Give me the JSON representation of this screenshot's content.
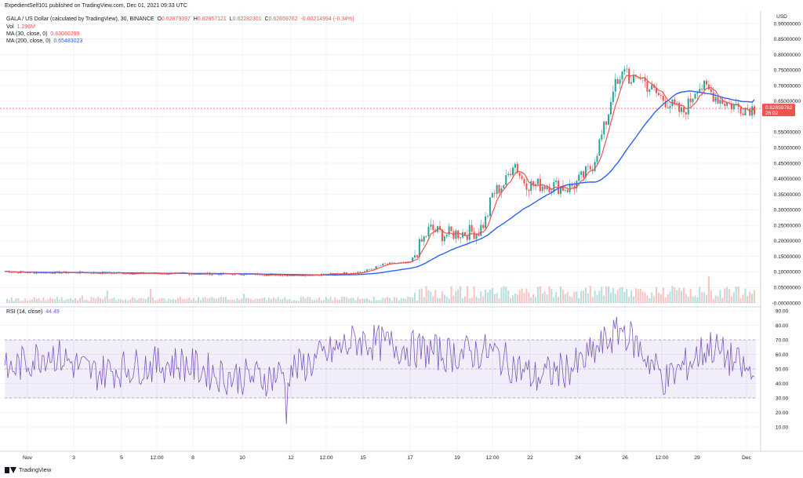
{
  "header": {
    "publisher": "ExpedientSelf101 published on TradingView.com, Dec 01, 2021 09:33 UTC"
  },
  "symbol_line": {
    "title": "GALA / US Dollar (calculated by TradingView), 30, BINANCE",
    "o_label": "O",
    "o_value": "0.62879397",
    "h_label": "H",
    "h_value": "0.62957121",
    "l_label": "L",
    "l_value": "0.62282301",
    "c_label": "C",
    "c_value": "0.62659762",
    "change": "-0.00214994 (-0.34%)"
  },
  "indicators": {
    "vol_label": "Vol",
    "vol_value": "1.296M",
    "ma30_label": "MA (30, close, 0)",
    "ma30_value": "0.63060299",
    "ma200_label": "MA (200, close, 0)",
    "ma200_value": "0.65483023",
    "rsi_label": "RSI (14, close)",
    "rsi_value": "44.49"
  },
  "price_axis": {
    "currency": "USD",
    "ticks": [
      "0.90000000",
      "0.85000000",
      "0.80000000",
      "0.75000000",
      "0.70000000",
      "0.65000000",
      "0.60000000",
      "0.55000000",
      "0.50000000",
      "0.45000000",
      "0.40000000",
      "0.35000000",
      "0.30000000",
      "0.25000000",
      "0.20000000",
      "0.15000000",
      "0.10000000",
      "0.05000000",
      "-0.00000000"
    ],
    "last_price": "0.62659762",
    "countdown": "26:02"
  },
  "rsi_axis": {
    "ticks": [
      "90.00",
      "80.00",
      "70.00",
      "60.00",
      "50.00",
      "40.00",
      "30.00",
      "20.00",
      "10.00"
    ]
  },
  "time_axis": {
    "labels": [
      "Nov",
      "3",
      "5",
      "12:00",
      "8",
      "10",
      "12",
      "12:00",
      "15",
      "17",
      "19",
      "12:00",
      "22",
      "24",
      "26",
      "12:00",
      "29",
      "Dec"
    ]
  },
  "footer": {
    "brand": "TradingView"
  },
  "colors": {
    "up": "#26a69a",
    "down": "#ef5350",
    "ma30": "#ef5350",
    "ma200": "#2962ff",
    "rsi": "#7e57c2",
    "rsi_band": "#7e57c2",
    "last_price_bg": "#ef5350",
    "grid": "#f0f3fa"
  },
  "chart_data": [
    {
      "type": "candlestick",
      "title": "GALA / US Dollar (calculated by TradingView), 30, BINANCE",
      "ylim": [
        0,
        0.9
      ],
      "x": [
        "Nov",
        "3",
        "5",
        "12:00",
        "8",
        "10",
        "12",
        "12:00",
        "15",
        "17",
        "19",
        "12:00",
        "22",
        "24",
        "26",
        "12:00",
        "29",
        "Dec"
      ],
      "close_approx": [
        0.1,
        0.098,
        0.095,
        0.093,
        0.094,
        0.093,
        0.09,
        0.09,
        0.1,
        0.17,
        0.22,
        0.33,
        0.39,
        0.43,
        0.75,
        0.7,
        0.7,
        0.626
      ],
      "series": [
        {
          "name": "MA (30, close, 0)",
          "last": 0.63060299
        },
        {
          "name": "MA (200, close, 0)",
          "last": 0.65483023
        }
      ],
      "last_price": 0.62659762
    },
    {
      "type": "bar",
      "title": "Vol",
      "last": "1.296M"
    },
    {
      "type": "line",
      "title": "RSI (14, close)",
      "ylim": [
        5,
        92
      ],
      "bands": [
        30,
        70
      ],
      "last": 44.49,
      "x": [
        "Nov",
        "3",
        "5",
        "12:00",
        "8",
        "10",
        "12",
        "12:00",
        "15",
        "17",
        "19",
        "12:00",
        "22",
        "24",
        "26",
        "12:00",
        "29",
        "Dec"
      ],
      "values_approx": [
        48,
        62,
        47,
        52,
        54,
        45,
        44,
        55,
        70,
        65,
        60,
        62,
        44,
        52,
        78,
        42,
        66,
        44.49
      ]
    }
  ]
}
